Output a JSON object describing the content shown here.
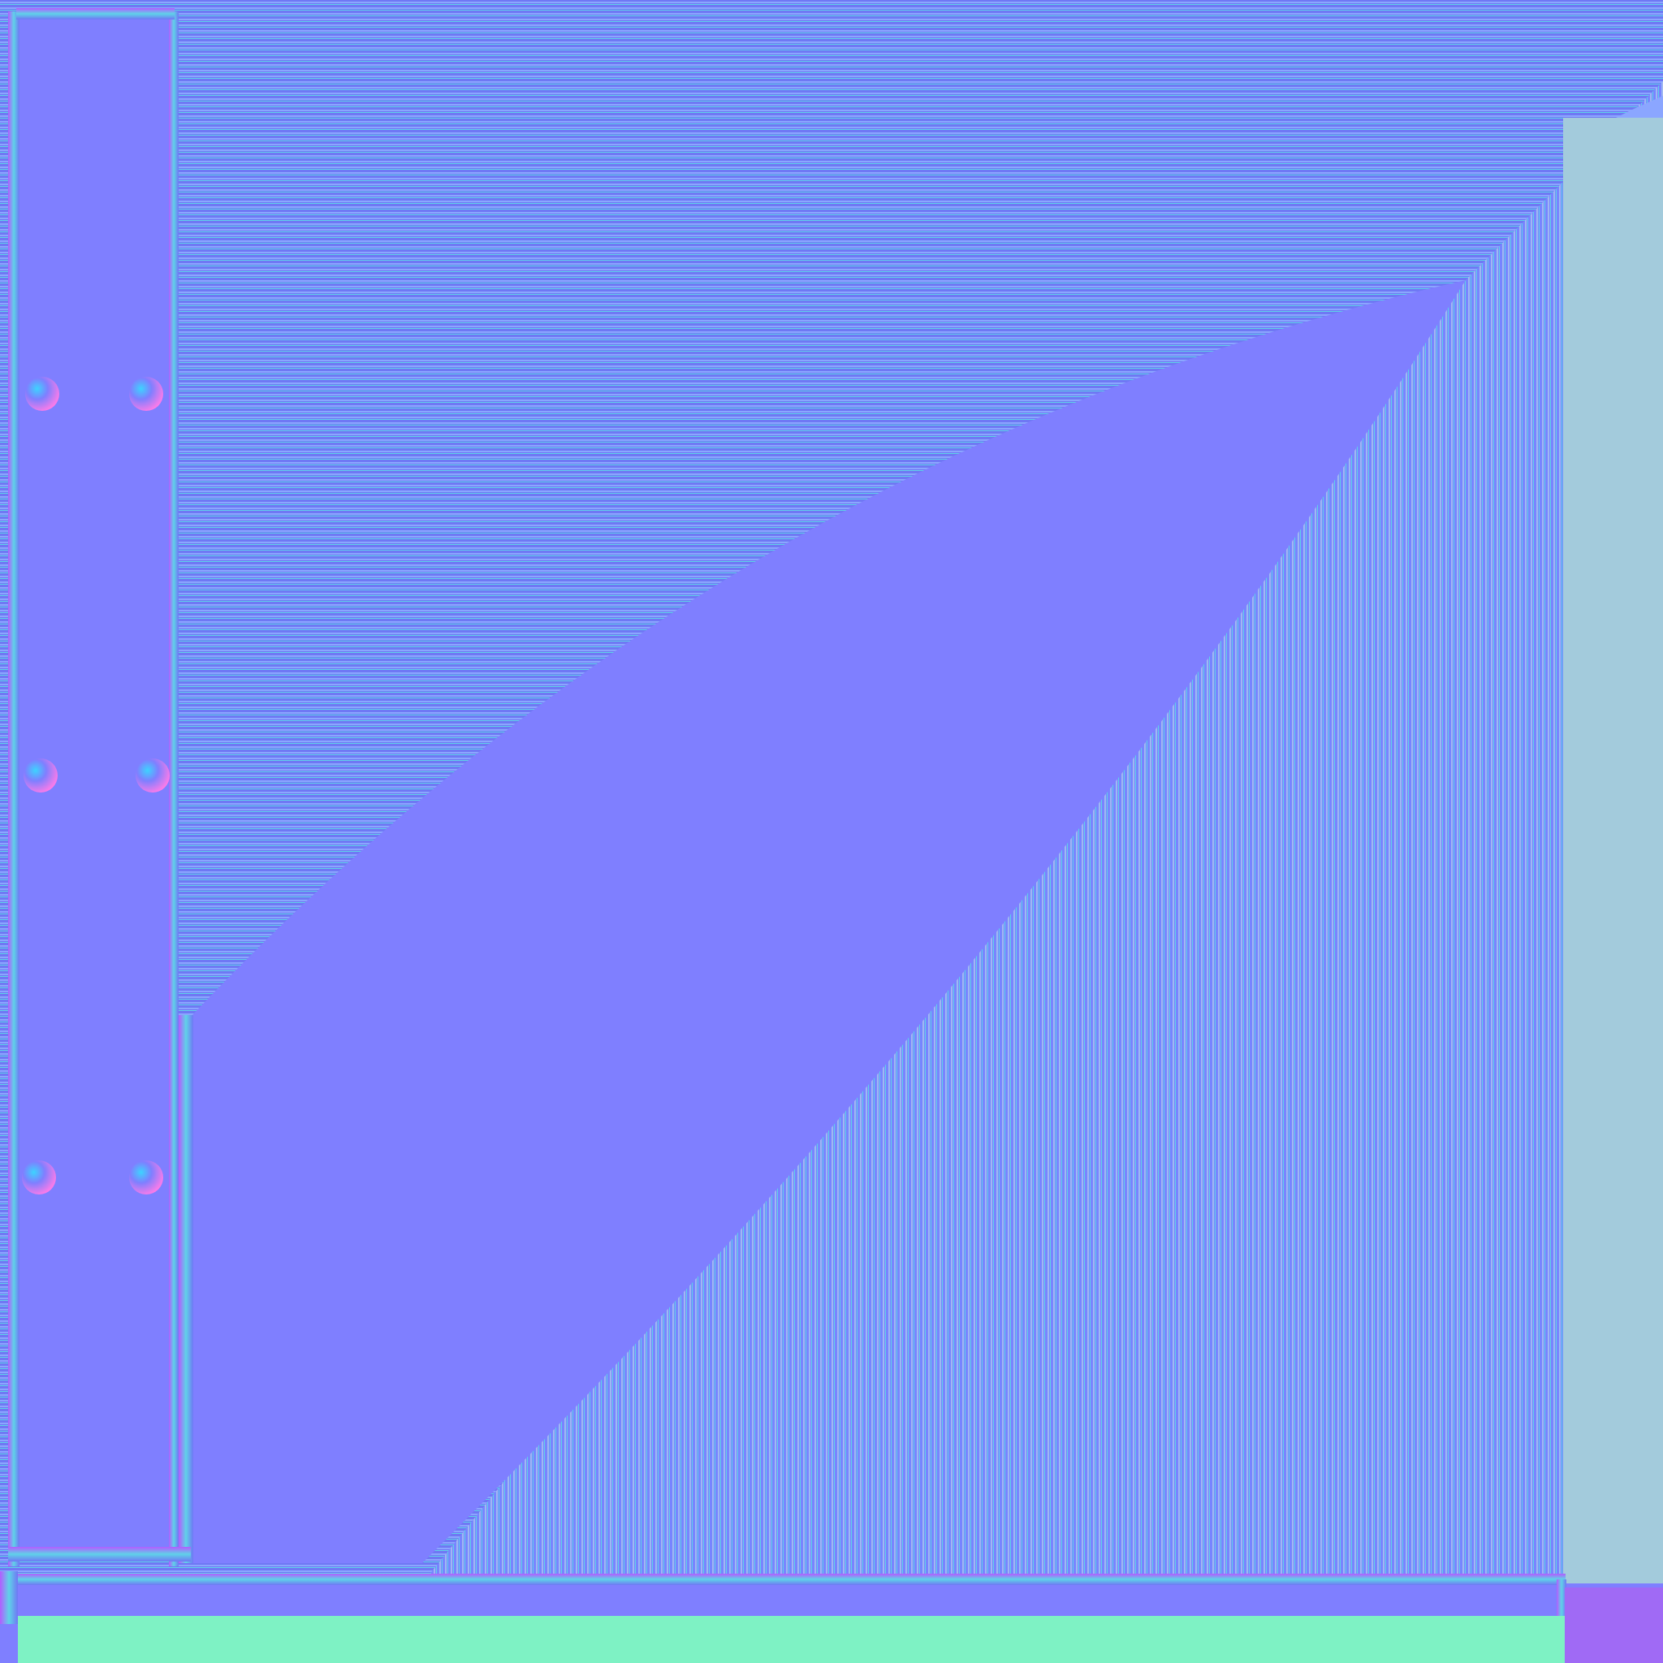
{
  "texture": {
    "kind": "normal-map",
    "colors": {
      "flat": "#7f7fff",
      "horizontal_stripe_a": "#6f78f4",
      "horizontal_stripe_b": "#8ba6ff",
      "vertical_stripe_a": "#7884ff",
      "vertical_stripe_b": "#9fb8f2",
      "edge_cyan": "#5fd2e8",
      "edge_magenta": "#b35cff",
      "right_band": "#a3cbdc",
      "bottom_band": "#7ef2c4",
      "corner_purple": "#a06af5"
    },
    "rivets": {
      "count": 6,
      "colors": [
        "#3dd3ff",
        "#ff7be8",
        "#7f7fff"
      ]
    }
  }
}
